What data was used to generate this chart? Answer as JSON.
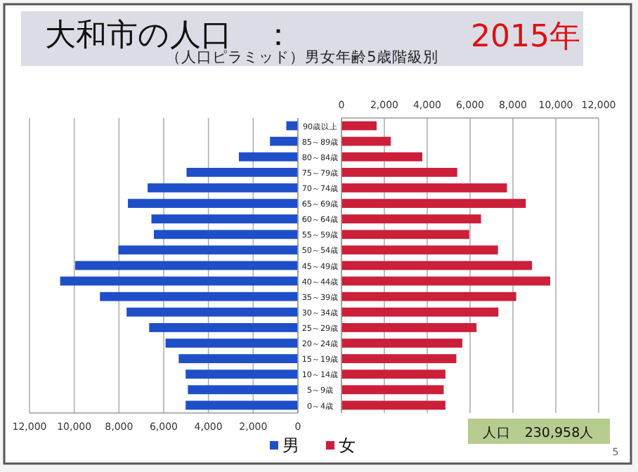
{
  "chart_data": [
    {
      "type": "bar",
      "orientation": "horizontal",
      "title": "大和市の人口　：",
      "subtitle": "（人口ピラミッド）男女年齢5歳階級別",
      "annotations": [
        "2015年",
        "人口　230,958人",
        "5"
      ],
      "series": [
        {
          "name": "男",
          "color": "#1f4fc8",
          "values": [
            520,
            1250,
            2640,
            4980,
            6720,
            7600,
            6550,
            6440,
            8030,
            9960,
            10630,
            8850,
            7660,
            6650,
            5920,
            5330,
            5020,
            4920,
            5020
          ]
        }
      ],
      "xlim": [
        12000,
        0
      ],
      "xticks": [
        {
          "value": 12000,
          "label": "12,000"
        },
        {
          "value": 10000,
          "label": "10,000"
        },
        {
          "value": 8000,
          "label": "8,000"
        },
        {
          "value": 6000,
          "label": "6,000"
        },
        {
          "value": 4000,
          "label": "4,000"
        },
        {
          "value": 2000,
          "label": "2,000"
        },
        0
      ],
      "grid": "x",
      "legend": "bottom",
      "tick_labels": "x"
    },
    {
      "type": "bar",
      "orientation": "horizontal",
      "categories": [
        "90歳以上",
        "85～89歳",
        "80～84歳",
        "75～79歳",
        "70～74歳",
        "65～69歳",
        "60～64歳",
        "55～59歳",
        "50～54歳",
        "45～49歳",
        "40～44歳",
        "35～39歳",
        "30～34歳",
        "25～29歳",
        "20～24歳",
        "15～19歳",
        "10～14歳",
        "5～9歳",
        "0～4歳"
      ],
      "series": [
        {
          "name": "女",
          "color": "#cc1f3a",
          "values": [
            1640,
            2300,
            3770,
            5400,
            7720,
            8600,
            6510,
            5960,
            7300,
            8890,
            9740,
            8150,
            7320,
            6300,
            5640,
            5360,
            4850,
            4770,
            4850
          ]
        }
      ],
      "xlim": [
        0,
        12000
      ],
      "xticks": [
        0,
        {
          "value": 2000,
          "label": "2,000"
        },
        {
          "value": 4000,
          "label": "4,000"
        },
        {
          "value": 6000,
          "label": "6,000"
        },
        {
          "value": 8000,
          "label": "8,000"
        },
        {
          "value": 10000,
          "label": "10,000"
        },
        {
          "value": 12000,
          "label": "12,000"
        }
      ],
      "grid": "x",
      "legend": "bottom"
    }
  ]
}
